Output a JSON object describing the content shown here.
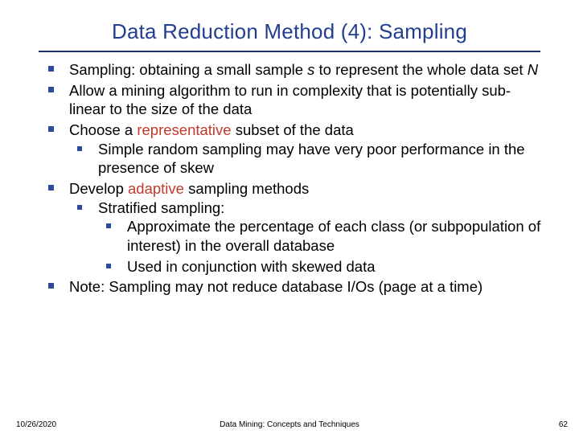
{
  "colors": {
    "title": "#233e8f",
    "hr": "#20306a",
    "body_text": "#000000",
    "bullet": "#2e4a9a",
    "highlight": "#c0392b",
    "footer": "#000000",
    "background": "#ffffff"
  },
  "title": "Data Reduction Method (4): Sampling",
  "bullets": [
    {
      "prefix": "Sampling: obtaining a small sample ",
      "italic1": "s",
      "mid": " to represent the whole data set ",
      "italic2": "N",
      "suffix": ""
    },
    {
      "text": "Allow a mining algorithm to run in complexity that is potentially sub-linear to the size of the data"
    },
    {
      "prefix": "Choose a ",
      "highlight": "representative",
      "suffix": " subset of the data",
      "children": [
        {
          "text": "Simple random sampling may have very poor performance in the presence of skew"
        }
      ]
    },
    {
      "prefix": "Develop ",
      "highlight": "adaptive",
      "suffix": " sampling methods",
      "children": [
        {
          "text": "Stratified sampling:",
          "children": [
            {
              "text": "Approximate the percentage of each class (or subpopulation of interest) in the overall database"
            },
            {
              "text": "Used in conjunction with skewed data"
            }
          ]
        }
      ]
    },
    {
      "text": "Note: Sampling may not reduce database I/Os (page at a time)"
    }
  ],
  "footer": {
    "date": "10/26/2020",
    "center": "Data Mining: Concepts and Techniques",
    "page": "62"
  }
}
